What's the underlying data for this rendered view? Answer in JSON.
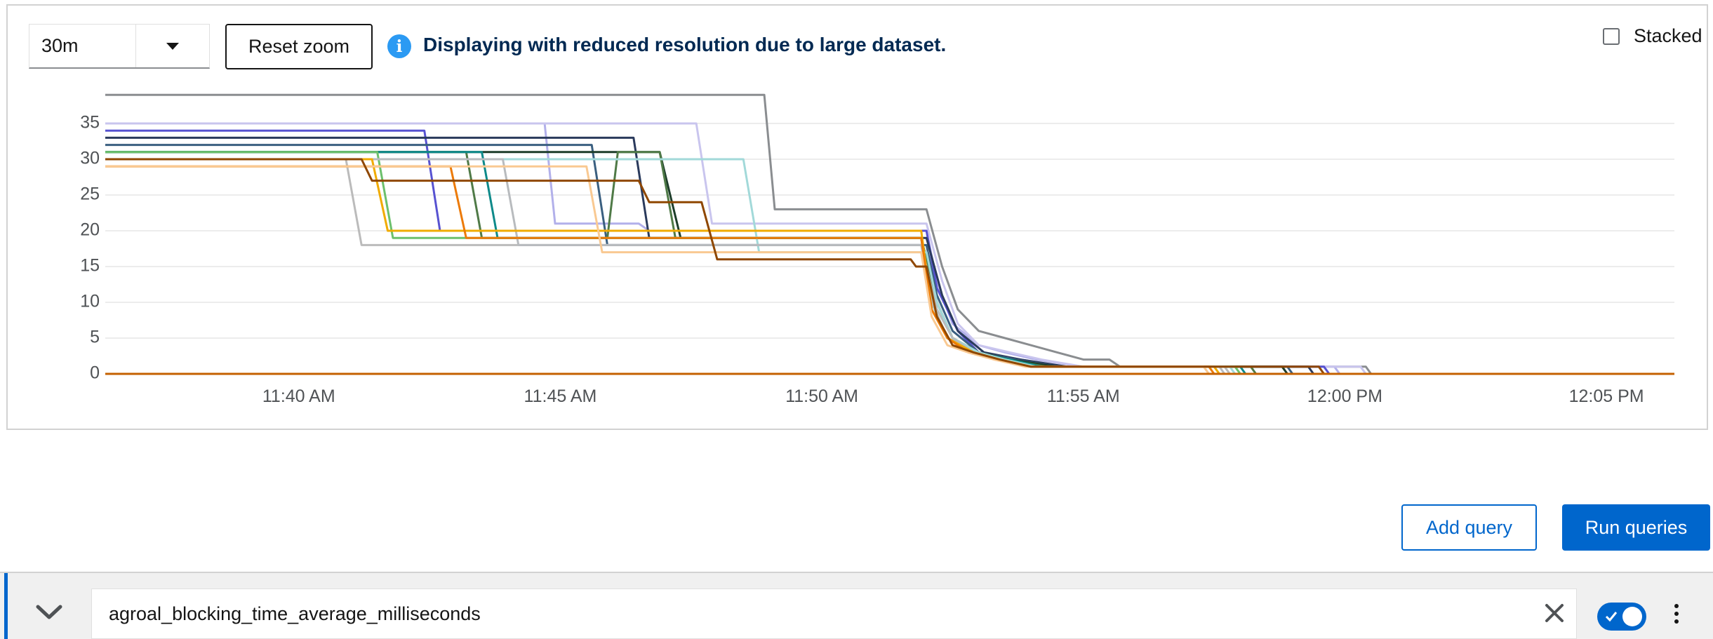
{
  "toolbar": {
    "span_value": "30m",
    "reset_zoom_label": "Reset zoom",
    "info_message": "Displaying with reduced resolution due to large dataset.",
    "stacked_label": "Stacked",
    "stacked_checked": false
  },
  "chart_data": {
    "type": "line",
    "title": "",
    "xlabel": "",
    "ylabel": "",
    "x_ticks": [
      "11:40 AM",
      "11:45 AM",
      "11:50 AM",
      "11:55 AM",
      "12:00 PM",
      "12:05 PM"
    ],
    "y_ticks": [
      0,
      5,
      10,
      15,
      20,
      25,
      30,
      35
    ],
    "ylim": [
      0,
      38
    ],
    "xlim_minutes_after_11am": [
      36.3,
      66.3
    ],
    "grid": true,
    "legend": "none",
    "series": [
      {
        "color": "#8a8d90",
        "points": [
          [
            36.3,
            39
          ],
          [
            48.9,
            39
          ],
          [
            49.1,
            23
          ],
          [
            52.0,
            23
          ],
          [
            52.3,
            15
          ],
          [
            52.6,
            9
          ],
          [
            53.0,
            6
          ],
          [
            53.5,
            5
          ],
          [
            54.0,
            4
          ],
          [
            54.5,
            3
          ],
          [
            55.0,
            2
          ],
          [
            55.5,
            2
          ],
          [
            55.7,
            1
          ],
          [
            60.4,
            1
          ],
          [
            60.5,
            0
          ],
          [
            66.3,
            0
          ]
        ]
      },
      {
        "color": "#b2b0ea",
        "points": [
          [
            36.3,
            35
          ],
          [
            44.7,
            35
          ],
          [
            44.9,
            21
          ],
          [
            46.5,
            21
          ],
          [
            46.7,
            20
          ],
          [
            52.0,
            20
          ],
          [
            52.2,
            13
          ],
          [
            52.5,
            7
          ],
          [
            53.0,
            4
          ],
          [
            53.5,
            3
          ],
          [
            54.1,
            2
          ],
          [
            55.0,
            1
          ],
          [
            59.8,
            1
          ],
          [
            59.9,
            0
          ],
          [
            66.3,
            0
          ]
        ]
      },
      {
        "color": "#c9c5ee",
        "points": [
          [
            36.3,
            35
          ],
          [
            47.6,
            35
          ],
          [
            47.9,
            21
          ],
          [
            52.0,
            21
          ],
          [
            52.3,
            13
          ],
          [
            52.6,
            7
          ],
          [
            53.0,
            4
          ],
          [
            53.6,
            3
          ],
          [
            54.2,
            2
          ],
          [
            55.0,
            1
          ],
          [
            60.3,
            1
          ],
          [
            60.4,
            0
          ],
          [
            66.3,
            0
          ]
        ]
      },
      {
        "color": "#5752d1",
        "points": [
          [
            36.3,
            34
          ],
          [
            42.4,
            34
          ],
          [
            42.7,
            20
          ],
          [
            52.0,
            20
          ],
          [
            52.2,
            12
          ],
          [
            52.6,
            6
          ],
          [
            53.0,
            3
          ],
          [
            53.8,
            2
          ],
          [
            54.6,
            1
          ],
          [
            59.6,
            1
          ],
          [
            59.7,
            0
          ],
          [
            66.3,
            0
          ]
        ]
      },
      {
        "color": "#2a3a5c",
        "points": [
          [
            36.3,
            33
          ],
          [
            46.4,
            33
          ],
          [
            46.7,
            19
          ],
          [
            52.0,
            19
          ],
          [
            52.3,
            11
          ],
          [
            52.6,
            6
          ],
          [
            53.1,
            3
          ],
          [
            53.8,
            2
          ],
          [
            54.7,
            1
          ],
          [
            59.3,
            1
          ],
          [
            59.4,
            0
          ],
          [
            66.3,
            0
          ]
        ]
      },
      {
        "color": "#3a5f80",
        "points": [
          [
            36.3,
            32
          ],
          [
            45.6,
            32
          ],
          [
            45.9,
            18
          ],
          [
            52.0,
            18
          ],
          [
            52.2,
            11
          ],
          [
            52.5,
            6
          ],
          [
            53.0,
            3
          ],
          [
            53.7,
            2
          ],
          [
            54.5,
            1
          ],
          [
            58.9,
            1
          ],
          [
            59.0,
            0
          ],
          [
            66.3,
            0
          ]
        ]
      },
      {
        "color": "#1d3d2a",
        "points": [
          [
            36.3,
            31
          ],
          [
            46.9,
            31
          ],
          [
            47.3,
            19
          ],
          [
            51.9,
            19
          ],
          [
            52.2,
            10
          ],
          [
            52.5,
            5
          ],
          [
            53.0,
            3
          ],
          [
            53.6,
            2
          ],
          [
            54.5,
            1
          ],
          [
            58.8,
            1
          ],
          [
            58.9,
            0
          ],
          [
            66.3,
            0
          ]
        ]
      },
      {
        "color": "#4f7a47",
        "points": [
          [
            36.3,
            31
          ],
          [
            43.2,
            31
          ],
          [
            43.5,
            19
          ],
          [
            45.9,
            19
          ],
          [
            46.1,
            31
          ],
          [
            46.9,
            31
          ],
          [
            47.2,
            19
          ],
          [
            51.9,
            19
          ],
          [
            52.2,
            10
          ],
          [
            52.5,
            5
          ],
          [
            53.0,
            3
          ],
          [
            53.5,
            2
          ],
          [
            54.3,
            1
          ],
          [
            58.2,
            1
          ],
          [
            58.3,
            0
          ],
          [
            66.3,
            0
          ]
        ]
      },
      {
        "color": "#0e8a8a",
        "points": [
          [
            36.3,
            31
          ],
          [
            43.5,
            31
          ],
          [
            43.8,
            19
          ],
          [
            51.9,
            19
          ],
          [
            52.1,
            10
          ],
          [
            52.4,
            5
          ],
          [
            52.9,
            3
          ],
          [
            53.6,
            2
          ],
          [
            54.2,
            1
          ],
          [
            58.0,
            1
          ],
          [
            58.1,
            0
          ],
          [
            66.3,
            0
          ]
        ]
      },
      {
        "color": "#6cc06c",
        "points": [
          [
            36.3,
            31
          ],
          [
            41.5,
            31
          ],
          [
            41.8,
            19
          ],
          [
            51.9,
            19
          ],
          [
            52.1,
            10
          ],
          [
            52.4,
            5
          ],
          [
            52.9,
            3
          ],
          [
            53.5,
            2
          ],
          [
            54.1,
            1
          ],
          [
            57.9,
            1
          ],
          [
            58.0,
            0
          ],
          [
            66.3,
            0
          ]
        ]
      },
      {
        "color": "#a2d9d9",
        "points": [
          [
            36.3,
            30
          ],
          [
            48.5,
            30
          ],
          [
            48.8,
            17
          ],
          [
            52.0,
            17
          ],
          [
            52.2,
            10
          ],
          [
            52.5,
            5
          ],
          [
            53.0,
            3
          ],
          [
            53.5,
            2
          ],
          [
            54.1,
            1
          ],
          [
            57.8,
            1
          ],
          [
            57.9,
            0
          ],
          [
            66.3,
            0
          ]
        ]
      },
      {
        "color": "#bbbbbb",
        "points": [
          [
            36.3,
            30
          ],
          [
            40.9,
            30
          ],
          [
            41.2,
            18
          ],
          [
            51.9,
            18
          ],
          [
            52.1,
            10
          ],
          [
            52.4,
            5
          ],
          [
            52.9,
            3
          ],
          [
            53.4,
            2
          ],
          [
            54.0,
            1
          ],
          [
            57.7,
            1
          ],
          [
            57.8,
            0
          ],
          [
            66.3,
            0
          ]
        ]
      },
      {
        "color": "#b8bbbe",
        "points": [
          [
            36.3,
            30
          ],
          [
            43.9,
            30
          ],
          [
            44.2,
            18
          ],
          [
            51.9,
            18
          ],
          [
            52.2,
            9
          ],
          [
            52.5,
            5
          ],
          [
            52.9,
            3
          ],
          [
            53.4,
            2
          ],
          [
            54.0,
            1
          ],
          [
            57.6,
            1
          ],
          [
            57.7,
            0
          ],
          [
            66.3,
            0
          ]
        ]
      },
      {
        "color": "#f0ab00",
        "points": [
          [
            36.3,
            30
          ],
          [
            41.4,
            30
          ],
          [
            41.7,
            20
          ],
          [
            51.9,
            20
          ],
          [
            52.1,
            9
          ],
          [
            52.4,
            5
          ],
          [
            52.9,
            3
          ],
          [
            53.4,
            2
          ],
          [
            54.0,
            1
          ],
          [
            57.5,
            1
          ],
          [
            57.6,
            0
          ],
          [
            66.3,
            0
          ]
        ]
      },
      {
        "color": "#ec7a08",
        "points": [
          [
            36.3,
            29
          ],
          [
            42.9,
            29
          ],
          [
            43.2,
            19
          ],
          [
            51.9,
            19
          ],
          [
            52.1,
            9
          ],
          [
            52.4,
            5
          ],
          [
            52.8,
            3
          ],
          [
            53.3,
            2
          ],
          [
            53.9,
            1
          ],
          [
            57.4,
            1
          ],
          [
            57.5,
            0
          ],
          [
            66.3,
            0
          ]
        ]
      },
      {
        "color": "#f9c992",
        "points": [
          [
            36.3,
            29
          ],
          [
            45.5,
            29
          ],
          [
            45.8,
            17
          ],
          [
            51.9,
            17
          ],
          [
            52.1,
            8
          ],
          [
            52.4,
            4
          ],
          [
            52.8,
            3
          ],
          [
            53.3,
            2
          ],
          [
            53.9,
            1
          ],
          [
            57.3,
            1
          ],
          [
            57.4,
            0
          ],
          [
            66.3,
            0
          ]
        ]
      },
      {
        "color": "#8f4700",
        "points": [
          [
            36.3,
            30
          ],
          [
            41.2,
            30
          ],
          [
            41.4,
            27
          ],
          [
            46.5,
            27
          ],
          [
            46.7,
            24
          ],
          [
            47.7,
            24
          ],
          [
            48.0,
            16
          ],
          [
            51.7,
            16
          ],
          [
            51.8,
            15
          ],
          [
            52.0,
            15
          ],
          [
            52.2,
            8
          ],
          [
            52.5,
            4
          ],
          [
            52.9,
            3
          ],
          [
            53.4,
            2
          ],
          [
            54.0,
            1
          ],
          [
            59.5,
            1
          ],
          [
            59.6,
            0
          ],
          [
            66.3,
            0
          ]
        ]
      },
      {
        "color": "#c46100",
        "points": [
          [
            36.3,
            0
          ],
          [
            66.3,
            0
          ]
        ]
      }
    ]
  },
  "actions": {
    "add_query_label": "Add query",
    "run_queries_label": "Run queries"
  },
  "query": {
    "expression": "agroal_blocking_time_average_milliseconds",
    "enabled": true
  },
  "icons": {
    "info": "info-circle-icon",
    "collapse": "chevron-down-icon",
    "clear": "close-icon",
    "toggle": "switch-icon",
    "menu": "kebab-icon"
  },
  "colors": {
    "primary": "#0066cc",
    "info": "#2b9af3",
    "info_text": "#002952"
  }
}
